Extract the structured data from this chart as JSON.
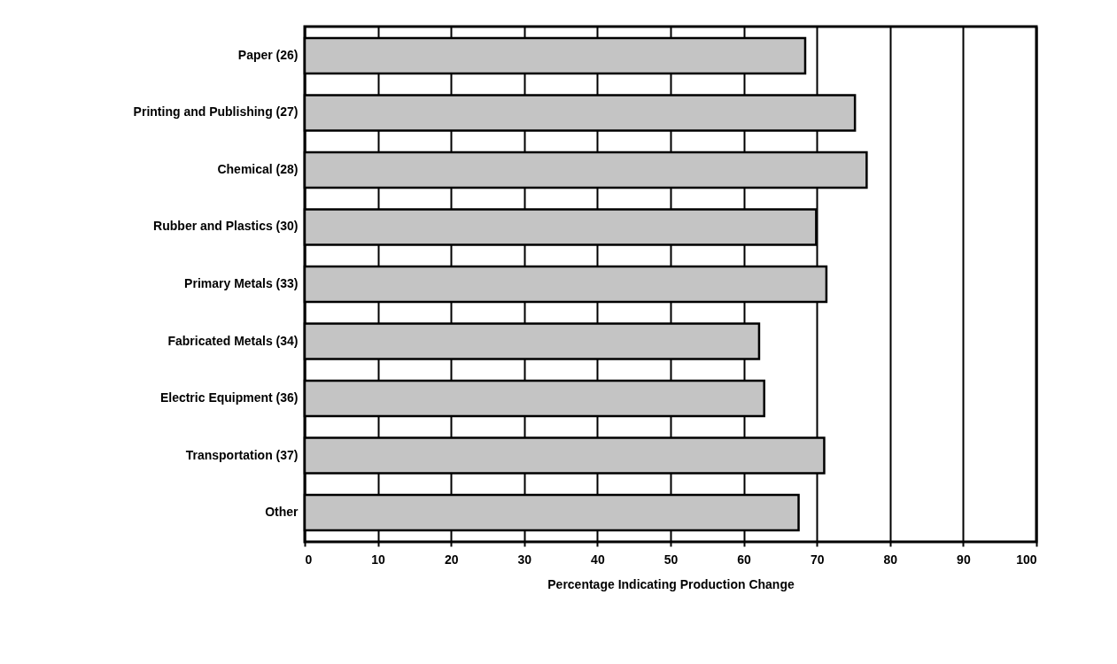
{
  "chart_data": {
    "type": "bar",
    "orientation": "horizontal",
    "categories": [
      "Paper (26)",
      "Printing and Publishing (27)",
      "Chemical (28)",
      "Rubber and Plastics (30)",
      "Primary Metals (33)",
      "Fabricated Metals (34)",
      "Electric Equipment (36)",
      "Transportation (37)",
      "Other"
    ],
    "values": [
      68.4,
      75.2,
      76.8,
      69.9,
      71.3,
      62.1,
      62.8,
      71.0,
      67.5
    ],
    "color": "#c4c4c4",
    "xlabel": "Percentage Indicating Production Change",
    "xlim": [
      0,
      100
    ],
    "xticks": [
      0,
      10,
      20,
      30,
      40,
      50,
      60,
      70,
      80,
      90,
      100
    ],
    "grid": "x"
  }
}
